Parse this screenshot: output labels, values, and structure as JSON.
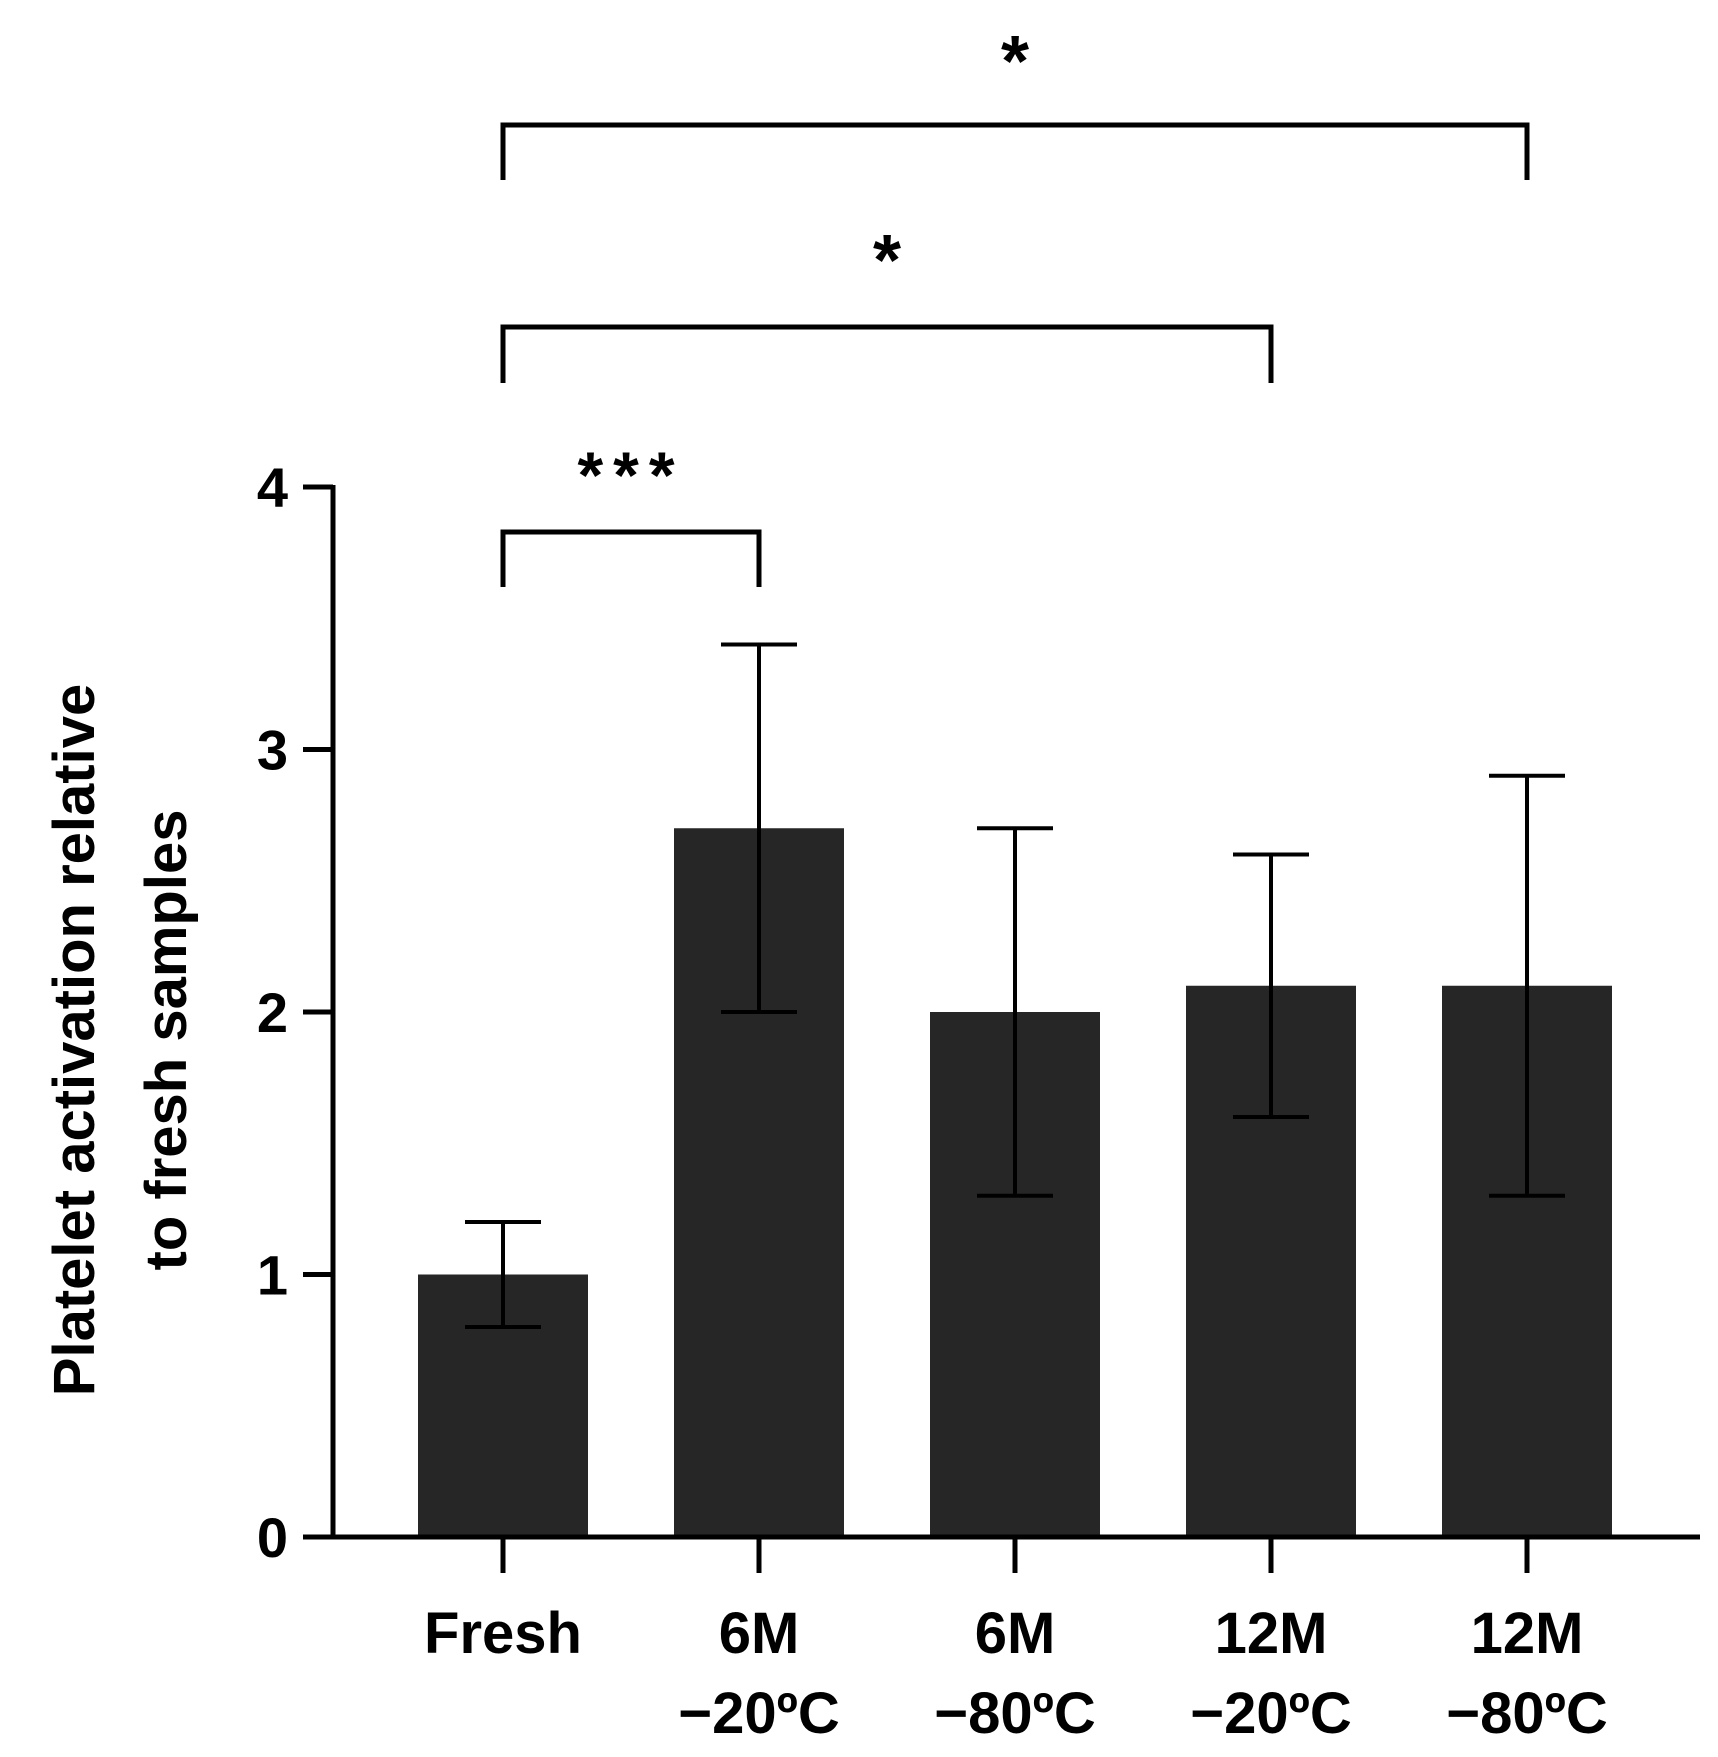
{
  "chart_data": {
    "type": "bar",
    "title": "",
    "xlabel": "",
    "ylabel": [
      "Platelet activation relative",
      "to fresh samples"
    ],
    "ylim": [
      0,
      4
    ],
    "yticks": [
      "0",
      "1",
      "2",
      "3",
      "4"
    ],
    "categories": [
      {
        "line1": "Fresh",
        "line2": ""
      },
      {
        "line1": "6M",
        "line2": "−20ºC"
      },
      {
        "line1": "6M",
        "line2": "−80ºC"
      },
      {
        "line1": "12M",
        "line2": "−20ºC"
      },
      {
        "line1": "12M",
        "line2": "−80ºC"
      }
    ],
    "values": [
      1.0,
      2.7,
      2.0,
      2.1,
      2.1
    ],
    "error_upper": [
      1.2,
      3.4,
      2.7,
      2.6,
      2.9
    ],
    "error_lower": [
      0.8,
      2.0,
      1.3,
      1.6,
      1.3
    ],
    "bar_color": "#262626",
    "significance": [
      {
        "from": 0,
        "to": 1,
        "label": "***"
      },
      {
        "from": 0,
        "to": 3,
        "label": "*"
      },
      {
        "from": 0,
        "to": 4,
        "label": "*"
      }
    ]
  }
}
